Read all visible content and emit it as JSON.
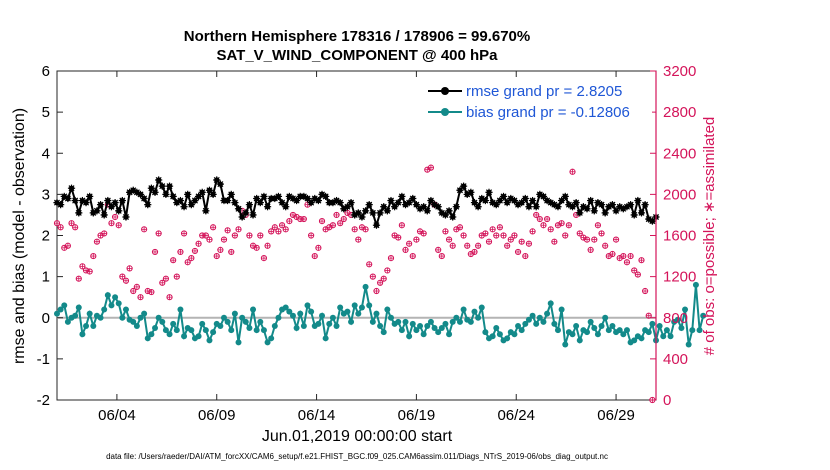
{
  "chart_data": {
    "type": "line",
    "title": "Northern Hemisphere 178316 / 178906 = 99.670%",
    "subtitle": "SAT_V_WIND_COMPONENT @ 400 hPa",
    "xlabel": "Jun.01,2019 00:00:00 start",
    "ylabel": "rmse and bias (model - observation)",
    "y2label": "# of obs: o=possible; ∗=assimilated",
    "footnote": "data file: /Users/raeder/DAI/ATM_forcXX/CAM6_setup/f.e21.FHIST_BGC.f09_025.CAM6assim.011/Diags_NTrS_2019-06/obs_diag_output.nc",
    "xlim": [
      1.0,
      31.0
    ],
    "ylim": [
      -2,
      6
    ],
    "y2lim": [
      0,
      3200
    ],
    "x_ticks": [
      4,
      9,
      14,
      19,
      24,
      29
    ],
    "x_tick_labels": [
      "06/04",
      "06/09",
      "06/14",
      "06/19",
      "06/24",
      "06/29"
    ],
    "y_ticks": [
      -2,
      -1,
      0,
      1,
      2,
      3,
      4,
      5,
      6
    ],
    "y_tick_labels": [
      "-2",
      "-1",
      "0",
      "1",
      "2",
      "3",
      "4",
      "5",
      "6"
    ],
    "y2_ticks": [
      0,
      400,
      800,
      1200,
      1600,
      2000,
      2400,
      2800,
      3200
    ],
    "y2_tick_labels": [
      "0",
      "400",
      "800",
      "1200",
      "1600",
      "2000",
      "2400",
      "2800",
      "3200"
    ],
    "zero_line": 0,
    "legend_position": "top-right",
    "colors": {
      "rmse": "#000000",
      "bias": "#138a8a",
      "obs": "#d4145a",
      "zero_line": "#b4b4b4",
      "legend_text": "#1f57d6",
      "y2_axis": "#d4145a"
    },
    "series": [
      {
        "name": "rmse grand pr = 2.8205",
        "values": [
          2.8,
          2.75,
          2.95,
          2.9,
          3.15,
          2.85,
          2.55,
          2.85,
          2.8,
          2.95,
          2.55,
          2.6,
          2.75,
          2.5,
          2.85,
          2.7,
          2.8,
          2.6,
          2.85,
          2.45,
          3.05,
          3.1,
          3.05,
          3.0,
          2.9,
          2.75,
          3.15,
          3.05,
          3.35,
          3.2,
          3.0,
          3.2,
          2.95,
          2.8,
          2.85,
          2.7,
          3.0,
          2.75,
          2.85,
          2.95,
          3.05,
          2.6,
          3.1,
          3.0,
          3.35,
          3.25,
          2.85,
          2.85,
          3.0,
          2.8,
          2.65,
          2.45,
          2.55,
          2.75,
          2.5,
          2.9,
          2.8,
          2.95,
          2.7,
          2.9,
          2.9,
          2.95,
          2.8,
          2.7,
          2.95,
          2.9,
          2.85,
          2.95,
          2.95,
          2.9,
          2.8,
          2.9,
          2.85,
          3.0,
          2.95,
          2.8,
          2.8,
          2.85,
          2.8,
          2.65,
          2.7,
          2.8,
          2.5,
          2.55,
          2.45,
          2.6,
          2.75,
          2.55,
          2.25,
          2.55,
          2.7,
          2.6,
          2.85,
          2.7,
          2.8,
          2.95,
          2.75,
          2.8,
          2.9,
          2.75,
          2.65,
          2.7,
          2.6,
          2.85,
          2.75,
          2.7,
          2.55,
          2.5,
          2.6,
          2.45,
          2.7,
          3.1,
          3.2,
          3.0,
          3.05,
          2.8,
          2.7,
          2.9,
          2.85,
          3.05,
          2.8,
          2.75,
          2.85,
          2.95,
          2.8,
          2.9,
          2.85,
          2.75,
          2.8,
          2.9,
          2.7,
          2.85,
          2.7,
          3.0,
          2.95,
          2.85,
          2.8,
          2.75,
          2.7,
          2.85,
          2.95,
          2.75,
          2.7,
          2.8,
          2.55,
          2.7,
          2.65,
          2.85,
          2.6,
          2.8,
          2.75,
          2.55,
          2.7,
          2.75,
          2.6,
          2.7,
          2.65,
          2.7,
          2.75,
          2.5,
          2.85,
          2.55,
          2.75,
          2.4,
          2.35,
          2.45
        ]
      },
      {
        "name": "bias grand pr = -0.12806",
        "values": [
          0.1,
          0.2,
          0.3,
          -0.1,
          0.0,
          0.05,
          0.25,
          -0.4,
          -0.2,
          0.1,
          -0.2,
          0.05,
          0.0,
          0.2,
          0.55,
          0.3,
          0.5,
          0.35,
          0.0,
          0.2,
          -0.05,
          -0.1,
          -0.2,
          0.0,
          0.1,
          -0.5,
          -0.4,
          -0.25,
          0.0,
          -0.1,
          -0.3,
          -0.4,
          -0.15,
          -0.3,
          0.2,
          -0.45,
          -0.25,
          -0.3,
          -0.5,
          -0.45,
          -0.15,
          -0.3,
          -0.55,
          -0.35,
          -0.15,
          -0.2,
          0.0,
          -0.1,
          -0.3,
          0.1,
          -0.6,
          0.0,
          -0.1,
          -0.25,
          0.2,
          -0.3,
          -0.1,
          -0.3,
          -0.6,
          -0.5,
          -0.2,
          0.0,
          0.2,
          0.25,
          0.15,
          0.05,
          -0.25,
          0.1,
          -0.2,
          0.3,
          0.15,
          -0.2,
          -0.15,
          0.05,
          -0.5,
          -0.15,
          0.0,
          -0.2,
          0.25,
          0.1,
          0.15,
          -0.1,
          0.3,
          0.1,
          0.25,
          0.75,
          0.3,
          -0.1,
          0.1,
          -0.2,
          -0.35,
          0.2,
          0.0,
          -0.15,
          -0.1,
          -0.3,
          -0.1,
          -0.45,
          -0.15,
          -0.3,
          -0.2,
          -0.4,
          -0.2,
          -0.1,
          -0.25,
          -0.35,
          -0.25,
          -0.15,
          -0.4,
          -0.1,
          0.0,
          -0.1,
          0.2,
          -0.05,
          -0.1,
          0.15,
          0.0,
          0.25,
          -0.35,
          -0.5,
          -0.45,
          -0.25,
          -0.4,
          -0.55,
          -0.5,
          -0.35,
          -0.4,
          -0.2,
          -0.3,
          -0.15,
          -0.05,
          0.05,
          -0.15,
          0.0,
          -0.1,
          0.1,
          0.35,
          -0.15,
          -0.3,
          0.2,
          -0.65,
          -0.35,
          -0.4,
          -0.2,
          -0.55,
          -0.3,
          -0.35,
          -0.1,
          -0.25,
          -0.4,
          -0.2,
          0.0,
          -0.3,
          -0.2,
          -0.35,
          -0.3,
          -0.4,
          -0.3,
          -0.6,
          -0.55,
          -0.45,
          -0.5,
          -0.3,
          -0.35,
          -0.15,
          -0.55,
          -0.2,
          -0.45,
          -0.3,
          -0.45,
          -0.1,
          -0.05,
          -0.25,
          0.2,
          -0.65,
          -0.3,
          0.8,
          -0.3,
          0.05
        ]
      },
      {
        "name": "# of obs possible (o) / assimilated (*)",
        "axis": "right",
        "values": [
          1720,
          1680,
          1480,
          1500,
          1720,
          1680,
          1180,
          1300,
          1260,
          1250,
          1400,
          1540,
          1600,
          1620,
          1900,
          1720,
          1780,
          1700,
          1200,
          1160,
          1280,
          1060,
          1100,
          1000,
          1660,
          1060,
          1050,
          1440,
          1620,
          1140,
          1180,
          1000,
          1360,
          1200,
          1440,
          1620,
          1340,
          1380,
          1450,
          1520,
          1600,
          1600,
          1560,
          1680,
          1400,
          1460,
          1560,
          1650,
          1440,
          1600,
          1660,
          1840,
          1800,
          1600,
          1500,
          1480,
          1600,
          1380,
          1500,
          1640,
          1680,
          1640,
          1700,
          1660,
          1740,
          1800,
          1780,
          1760,
          1760,
          1900,
          1600,
          1400,
          1480,
          1740,
          1660,
          1680,
          1700,
          1800,
          1720,
          1760,
          1820,
          1800,
          1660,
          1560,
          1680,
          1660,
          1320,
          1200,
          1060,
          1140,
          1180,
          1260,
          1380,
          1600,
          1580,
          1700,
          1460,
          1520,
          1400,
          1560,
          1640,
          1620,
          2240,
          2260,
          1900,
          1460,
          1400,
          1640,
          1560,
          1500,
          1660,
          1680,
          1600,
          1500,
          1420,
          1440,
          1500,
          1600,
          1620,
          1540,
          1660,
          1600,
          1680,
          1600,
          1500,
          1560,
          1600,
          1440,
          1540,
          1400,
          1520,
          1640,
          1800,
          1760,
          1700,
          1760,
          1660,
          1540,
          1700,
          1720,
          1600,
          1700,
          2220,
          1800,
          1620,
          1580,
          1560,
          1460,
          1560,
          1700,
          1620,
          1500,
          1400,
          1420,
          1560,
          1380,
          1400,
          1340,
          1400,
          1260,
          1220,
          1360,
          1060,
          820,
          0
        ]
      }
    ]
  }
}
